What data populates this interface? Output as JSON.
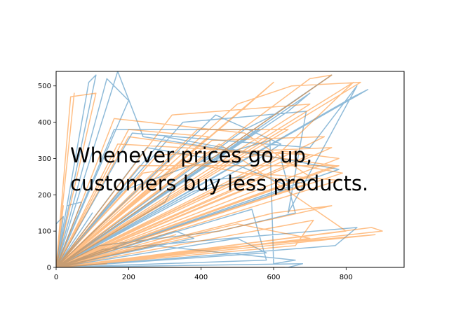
{
  "chart_data": {
    "type": "line",
    "title": "",
    "xlabel": "",
    "ylabel": "",
    "xlim": [
      0,
      960
    ],
    "ylim": [
      0,
      540
    ],
    "xticks": [
      0,
      200,
      400,
      600,
      800
    ],
    "yticks": [
      0,
      100,
      200,
      300,
      400,
      500
    ],
    "xtick_labels": [
      "0",
      "200",
      "400",
      "600",
      "800"
    ],
    "ytick_labels": [
      "0",
      "100",
      "200",
      "300",
      "400",
      "500"
    ],
    "grid": false,
    "annotation": {
      "line1": "Whenever prices go up,",
      "line2": "customers buy less products."
    },
    "series": [
      {
        "color": "#1f77b4",
        "opacity": 0.5,
        "points": [
          [
            0,
            0
          ],
          [
            90,
            510
          ],
          [
            110,
            530
          ],
          [
            0,
            0
          ],
          [
            170,
            540
          ],
          [
            240,
            360
          ],
          [
            620,
            300
          ],
          [
            660,
            150
          ],
          [
            450,
            100
          ],
          [
            120,
            60
          ],
          [
            0,
            0
          ],
          [
            520,
            380
          ],
          [
            600,
            420
          ],
          [
            760,
            530
          ],
          [
            0,
            0
          ],
          [
            350,
            400
          ],
          [
            690,
            430
          ],
          [
            640,
            150
          ],
          [
            830,
            500
          ],
          [
            700,
            330
          ],
          [
            210,
            370
          ],
          [
            0,
            0
          ],
          [
            180,
            210
          ],
          [
            450,
            310
          ],
          [
            590,
            350
          ],
          [
            600,
            10
          ],
          [
            660,
            20
          ],
          [
            270,
            60
          ],
          [
            0,
            0
          ],
          [
            770,
            60
          ],
          [
            830,
            110
          ],
          [
            130,
            50
          ],
          [
            0,
            0
          ],
          [
            420,
            240
          ],
          [
            520,
            250
          ],
          [
            480,
            230
          ],
          [
            380,
            210
          ],
          [
            0,
            0
          ],
          [
            500,
            80
          ],
          [
            580,
            40
          ],
          [
            0,
            0
          ],
          [
            560,
            300
          ],
          [
            620,
            340
          ],
          [
            440,
            420
          ],
          [
            0,
            0
          ],
          [
            30,
            170
          ],
          [
            70,
            180
          ],
          [
            0,
            0
          ],
          [
            300,
            180
          ],
          [
            330,
            230
          ],
          [
            0,
            0
          ],
          [
            640,
            430
          ],
          [
            700,
            480
          ],
          [
            0,
            0
          ],
          [
            250,
            330
          ],
          [
            480,
            290
          ],
          [
            650,
            220
          ],
          [
            0,
            0
          ],
          [
            140,
            520
          ],
          [
            200,
            460
          ],
          [
            0,
            0
          ],
          [
            860,
            490
          ],
          [
            820,
            470
          ],
          [
            0,
            0
          ],
          [
            330,
            100
          ],
          [
            380,
            80
          ],
          [
            0,
            0
          ],
          [
            160,
            380
          ],
          [
            560,
            380
          ],
          [
            0,
            0
          ],
          [
            540,
            160
          ],
          [
            580,
            20
          ],
          [
            0,
            0
          ],
          [
            100,
            150
          ],
          [
            0,
            0
          ],
          [
            300,
            360
          ],
          [
            780,
            270
          ],
          [
            0,
            0
          ],
          [
            680,
            10
          ],
          [
            640,
            0
          ],
          [
            0,
            0
          ],
          [
            60,
            90
          ],
          [
            0,
            0
          ],
          [
            0,
            120
          ],
          [
            20,
            140
          ],
          [
            0,
            0
          ]
        ]
      },
      {
        "color": "#ff7f0e",
        "opacity": 0.5,
        "points": [
          [
            0,
            0
          ],
          [
            50,
            480
          ],
          [
            0,
            0
          ],
          [
            90,
            100
          ],
          [
            240,
            260
          ],
          [
            630,
            320
          ],
          [
            780,
            300
          ],
          [
            0,
            0
          ],
          [
            840,
            510
          ],
          [
            650,
            500
          ],
          [
            500,
            450
          ],
          [
            0,
            0
          ],
          [
            900,
            100
          ],
          [
            870,
            110
          ],
          [
            0,
            0
          ],
          [
            880,
            90
          ],
          [
            410,
            50
          ],
          [
            0,
            0
          ],
          [
            790,
            260
          ],
          [
            620,
            290
          ],
          [
            0,
            0
          ],
          [
            700,
            520
          ],
          [
            760,
            530
          ],
          [
            0,
            0
          ],
          [
            320,
            420
          ],
          [
            700,
            450
          ],
          [
            0,
            0
          ],
          [
            770,
            280
          ],
          [
            200,
            360
          ],
          [
            0,
            0
          ],
          [
            450,
            340
          ],
          [
            800,
            100
          ],
          [
            0,
            0
          ],
          [
            160,
            410
          ],
          [
            520,
            370
          ],
          [
            700,
            250
          ],
          [
            0,
            0
          ],
          [
            110,
            480
          ],
          [
            40,
            470
          ],
          [
            0,
            0
          ],
          [
            300,
            150
          ],
          [
            0,
            0
          ],
          [
            500,
            120
          ],
          [
            700,
            80
          ],
          [
            0,
            0
          ],
          [
            280,
            310
          ],
          [
            760,
            330
          ],
          [
            0,
            0
          ],
          [
            350,
            290
          ],
          [
            690,
            230
          ],
          [
            0,
            0
          ],
          [
            600,
            150
          ],
          [
            760,
            170
          ],
          [
            0,
            0
          ],
          [
            140,
            10
          ],
          [
            0,
            0
          ],
          [
            390,
            380
          ],
          [
            640,
            380
          ],
          [
            0,
            0
          ],
          [
            230,
            280
          ],
          [
            780,
            280
          ],
          [
            0,
            0
          ],
          [
            480,
            200
          ],
          [
            560,
            230
          ],
          [
            0,
            0
          ],
          [
            170,
            340
          ],
          [
            700,
            310
          ],
          [
            0,
            0
          ],
          [
            520,
            440
          ],
          [
            600,
            510
          ],
          [
            0,
            0
          ],
          [
            660,
            60
          ],
          [
            710,
            130
          ],
          [
            0,
            0
          ],
          [
            80,
            60
          ],
          [
            0,
            0
          ],
          [
            260,
            210
          ],
          [
            0,
            0
          ],
          [
            430,
            350
          ],
          [
            740,
            360
          ],
          [
            0,
            0
          ],
          [
            330,
            90
          ],
          [
            0,
            0
          ],
          [
            600,
            300
          ],
          [
            820,
            510
          ],
          [
            0,
            0
          ],
          [
            20,
            170
          ],
          [
            0,
            0
          ],
          [
            120,
            90
          ],
          [
            0,
            0
          ],
          [
            200,
            380
          ],
          [
            420,
            360
          ],
          [
            0,
            0
          ],
          [
            540,
            260
          ],
          [
            780,
            240
          ],
          [
            0,
            0
          ],
          [
            340,
            320
          ],
          [
            0,
            0
          ],
          [
            630,
            0
          ],
          [
            0,
            0
          ]
        ]
      }
    ]
  }
}
